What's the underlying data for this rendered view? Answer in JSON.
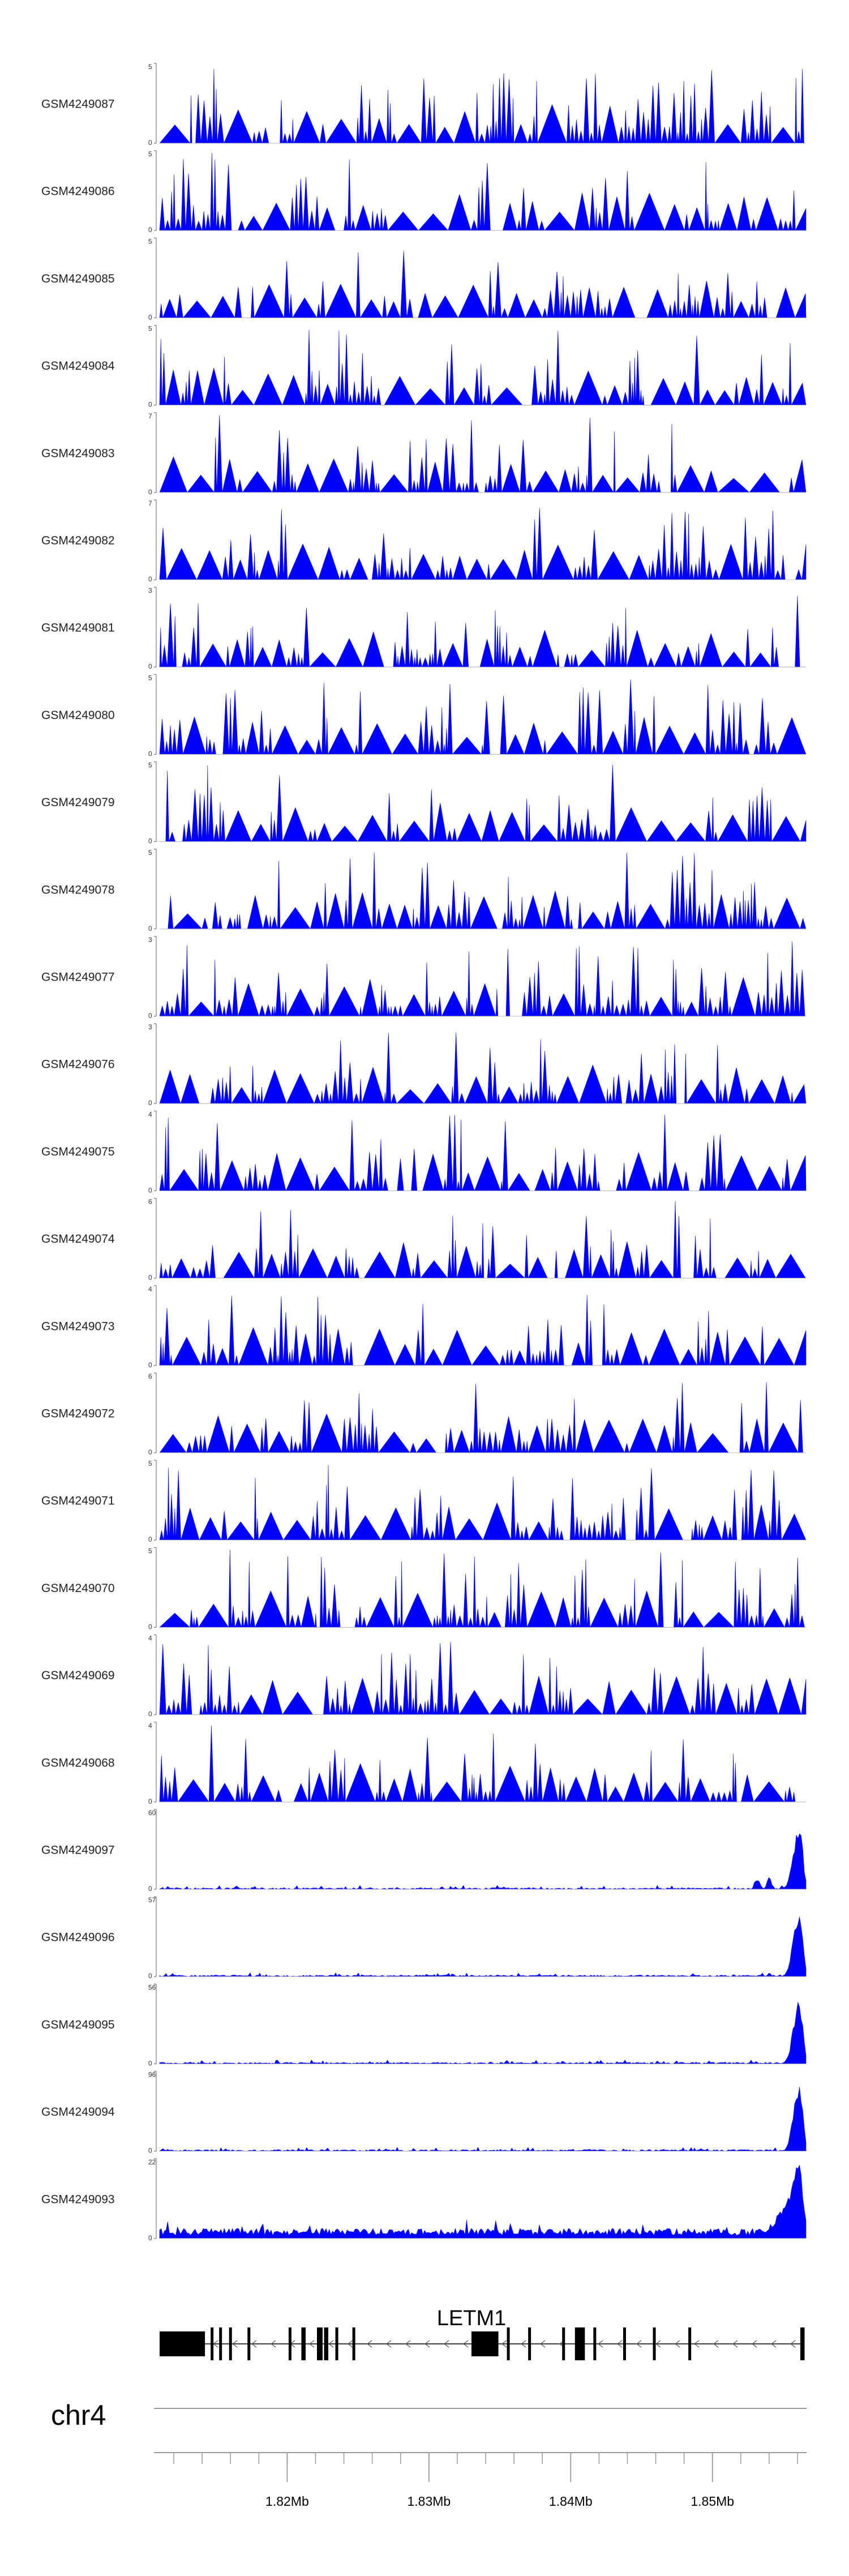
{
  "chart_data": {
    "type": "area",
    "title": "",
    "chromosome": "chr4",
    "region": {
      "start": 1811000,
      "end": 1856600
    },
    "axis": {
      "ticks": [
        1820000,
        1830000,
        1840000,
        1850000
      ],
      "tick_labels": [
        "1.82Mb",
        "1.83Mb",
        "1.84Mb",
        "1.85Mb"
      ],
      "minor_tick_step": 2000
    },
    "fill_color": "#0000ff",
    "tracks": [
      {
        "name": "GSM4249087",
        "ymin": "0",
        "ymax": "5",
        "max": 5,
        "pattern": "spiky",
        "seed": 87
      },
      {
        "name": "GSM4249086",
        "ymin": "0",
        "ymax": "5",
        "max": 5,
        "pattern": "spiky",
        "seed": 86
      },
      {
        "name": "GSM4249085",
        "ymin": "0",
        "ymax": "5",
        "max": 5,
        "pattern": "spiky",
        "seed": 85
      },
      {
        "name": "GSM4249084",
        "ymin": "0",
        "ymax": "5",
        "max": 5,
        "pattern": "spiky",
        "seed": 84
      },
      {
        "name": "GSM4249083",
        "ymin": "0",
        "ymax": "7",
        "max": 7,
        "pattern": "spiky",
        "seed": 83
      },
      {
        "name": "GSM4249082",
        "ymin": "0",
        "ymax": "7",
        "max": 7,
        "pattern": "spiky",
        "seed": 82
      },
      {
        "name": "GSM4249081",
        "ymin": "0",
        "ymax": "3",
        "max": 3,
        "pattern": "spiky",
        "seed": 81
      },
      {
        "name": "GSM4249080",
        "ymin": "0",
        "ymax": "5",
        "max": 5,
        "pattern": "spiky",
        "seed": 80
      },
      {
        "name": "GSM4249079",
        "ymin": "0",
        "ymax": "5",
        "max": 5,
        "pattern": "spiky",
        "seed": 79
      },
      {
        "name": "GSM4249078",
        "ymin": "0",
        "ymax": "5",
        "max": 5,
        "pattern": "spiky",
        "seed": 78
      },
      {
        "name": "GSM4249077",
        "ymin": "0",
        "ymax": "3",
        "max": 3,
        "pattern": "spiky",
        "seed": 77
      },
      {
        "name": "GSM4249076",
        "ymin": "0",
        "ymax": "3",
        "max": 3,
        "pattern": "spiky",
        "seed": 76
      },
      {
        "name": "GSM4249075",
        "ymin": "0",
        "ymax": "4",
        "max": 4,
        "pattern": "spiky",
        "seed": 75
      },
      {
        "name": "GSM4249074",
        "ymin": "0",
        "ymax": "6",
        "max": 6,
        "pattern": "spiky",
        "seed": 74
      },
      {
        "name": "GSM4249073",
        "ymin": "0",
        "ymax": "4",
        "max": 4,
        "pattern": "spiky",
        "seed": 73
      },
      {
        "name": "GSM4249072",
        "ymin": "0",
        "ymax": "6",
        "max": 6,
        "pattern": "spiky",
        "seed": 72
      },
      {
        "name": "GSM4249071",
        "ymin": "0",
        "ymax": "5",
        "max": 5,
        "pattern": "spiky",
        "seed": 71
      },
      {
        "name": "GSM4249070",
        "ymin": "0",
        "ymax": "5",
        "max": 5,
        "pattern": "spiky",
        "seed": 70
      },
      {
        "name": "GSM4249069",
        "ymin": "0",
        "ymax": "4",
        "max": 4,
        "pattern": "spiky",
        "seed": 69
      },
      {
        "name": "GSM4249068",
        "ymin": "0",
        "ymax": "4",
        "max": 4,
        "pattern": "spiky",
        "seed": 68
      },
      {
        "name": "GSM4249097",
        "ymin": "0",
        "ymax": "60",
        "max": 60,
        "pattern": "peak",
        "seed": 97
      },
      {
        "name": "GSM4249096",
        "ymin": "0",
        "ymax": "57",
        "max": 57,
        "pattern": "peak",
        "seed": 96
      },
      {
        "name": "GSM4249095",
        "ymin": "0",
        "ymax": "56",
        "max": 56,
        "pattern": "peak",
        "seed": 95
      },
      {
        "name": "GSM4249094",
        "ymin": "0",
        "ymax": "96",
        "max": 96,
        "pattern": "peak",
        "seed": 94
      },
      {
        "name": "GSM4249093",
        "ymin": "0",
        "ymax": "22",
        "max": 22,
        "pattern": "broad",
        "seed": 93
      }
    ],
    "gene": {
      "name": "LETM1",
      "strand": "-",
      "start": 1811000,
      "end": 1856500,
      "exons": [
        [
          1811000,
          1814200
        ],
        [
          1814600,
          1814800
        ],
        [
          1815200,
          1815400
        ],
        [
          1815900,
          1816100
        ],
        [
          1817200,
          1817400
        ],
        [
          1820100,
          1820300
        ],
        [
          1821000,
          1821300
        ],
        [
          1822100,
          1822500
        ],
        [
          1822600,
          1822900
        ],
        [
          1823400,
          1823600
        ],
        [
          1824600,
          1824800
        ],
        [
          1833000,
          1834900
        ],
        [
          1835500,
          1835700
        ],
        [
          1837000,
          1837200
        ],
        [
          1839400,
          1839600
        ],
        [
          1840300,
          1841000
        ],
        [
          1841600,
          1841800
        ],
        [
          1843700,
          1843900
        ],
        [
          1845800,
          1846000
        ],
        [
          1848300,
          1848500
        ],
        [
          1856200,
          1856500
        ]
      ]
    }
  }
}
